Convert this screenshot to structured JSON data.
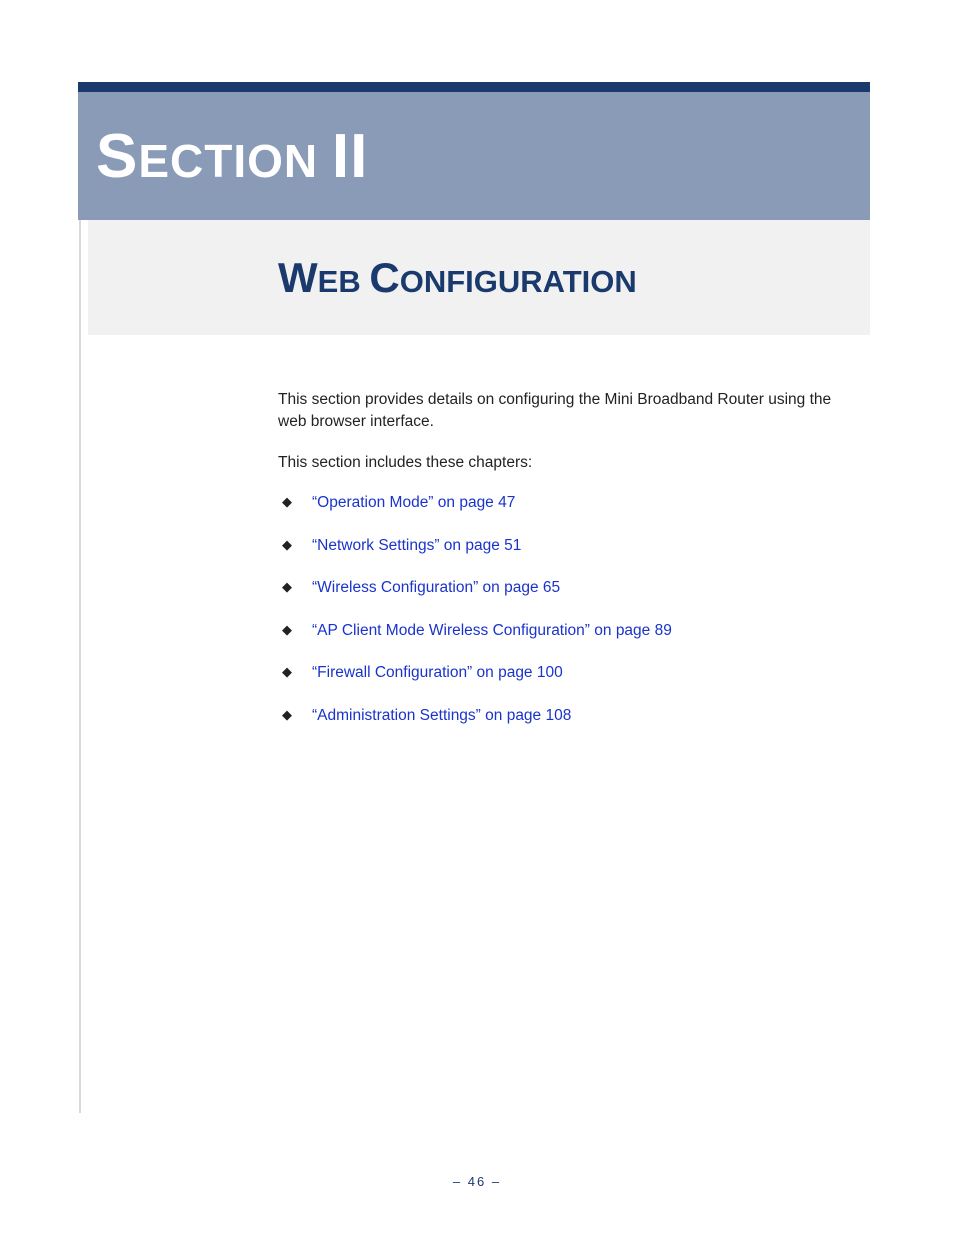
{
  "colors": {
    "top_bar": "#1a3a6e",
    "banner_bg": "#8a9bb8",
    "banner_text": "#ffffff",
    "subtitle_bg": "#f1f1f1",
    "subtitle_text": "#1a3a6e",
    "left_rule": "#d9d9d9",
    "body_text": "#222222",
    "link_text": "#1a33cc",
    "bullet": "#222222",
    "footer_text": "#1a3a6e",
    "page_bg": "#ffffff"
  },
  "typography": {
    "section_big_fontsize": 62,
    "section_rest_fontsize": 46,
    "subtitle_big_fontsize": 42,
    "subtitle_rest_fontsize": 31,
    "body_fontsize": 15.5,
    "footer_fontsize": 13,
    "font_family": "Verdana"
  },
  "section": {
    "big1": "S",
    "rest1": "ECTION",
    "space": " ",
    "big2": "II"
  },
  "subtitle": {
    "big1": "W",
    "rest1": "EB",
    "space": " ",
    "big2": "C",
    "rest2": "ONFIGURATION"
  },
  "body": {
    "para1": "This section provides details on configuring the Mini Broadband Router using the web browser interface.",
    "para2": "This section includes these chapters:"
  },
  "chapters": {
    "items": [
      {
        "label": "“Operation Mode” on page 47"
      },
      {
        "label": "“Network Settings” on page 51"
      },
      {
        "label": "“Wireless Configuration” on page 65"
      },
      {
        "label": "“AP Client Mode Wireless Configuration” on page 89"
      },
      {
        "label": "“Firewall Configuration” on page 100"
      },
      {
        "label": "“Administration Settings” on page 108"
      }
    ]
  },
  "footer": {
    "text": "–  46  –"
  }
}
